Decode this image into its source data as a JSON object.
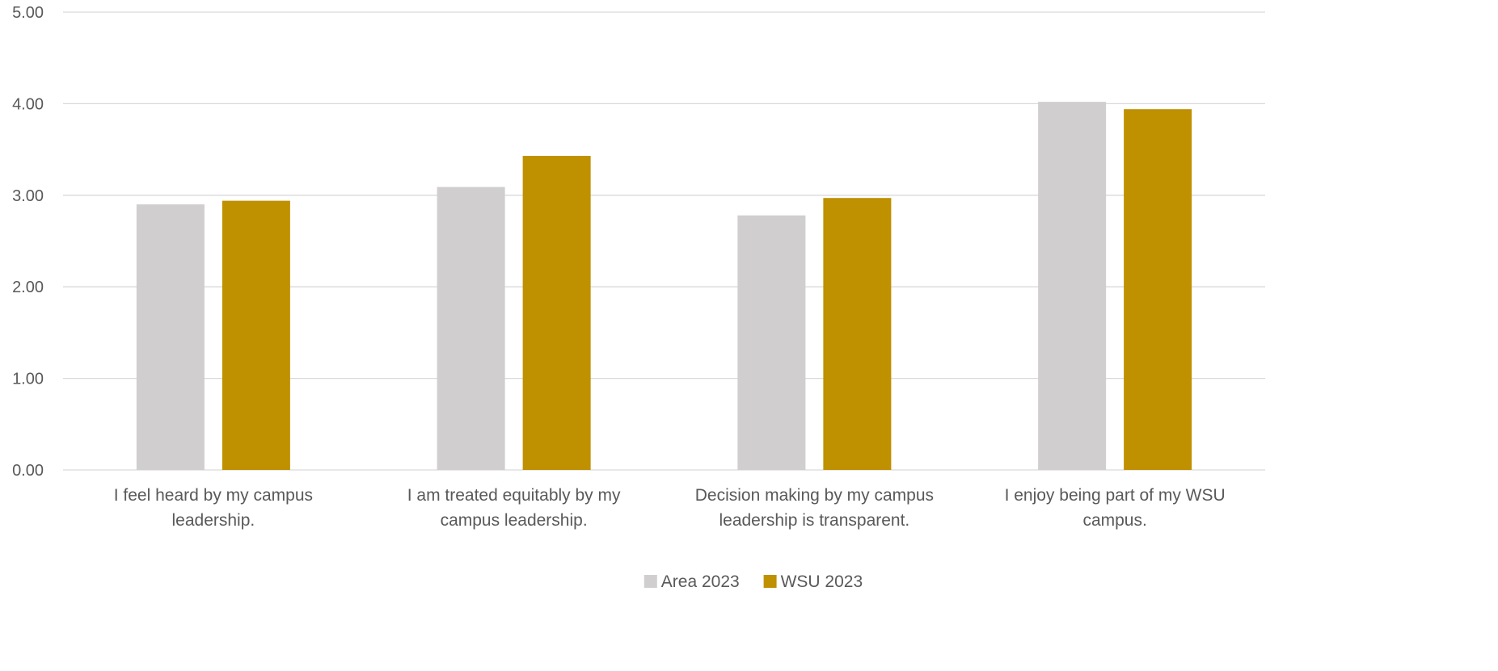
{
  "chart_data": {
    "type": "bar",
    "categories": [
      [
        "I feel heard by my campus",
        "leadership."
      ],
      [
        "I am treated equitably by my",
        "campus leadership."
      ],
      [
        "Decision making by my campus",
        "leadership is transparent."
      ],
      [
        "I enjoy being part of my WSU",
        "campus."
      ]
    ],
    "series": [
      {
        "name": "Area 2023",
        "color": "#D0CECE",
        "values": [
          2.9,
          3.09,
          2.78,
          4.02
        ]
      },
      {
        "name": "WSU 2023",
        "color": "#BF9000",
        "values": [
          2.94,
          3.43,
          2.97,
          3.94
        ]
      }
    ],
    "yticks": [
      "0.00",
      "1.00",
      "2.00",
      "3.00",
      "4.00",
      "5.00"
    ],
    "ylim": [
      0,
      5
    ],
    "grid": true,
    "gridColor": "#D9D9D9",
    "legend": "bottom-center"
  }
}
